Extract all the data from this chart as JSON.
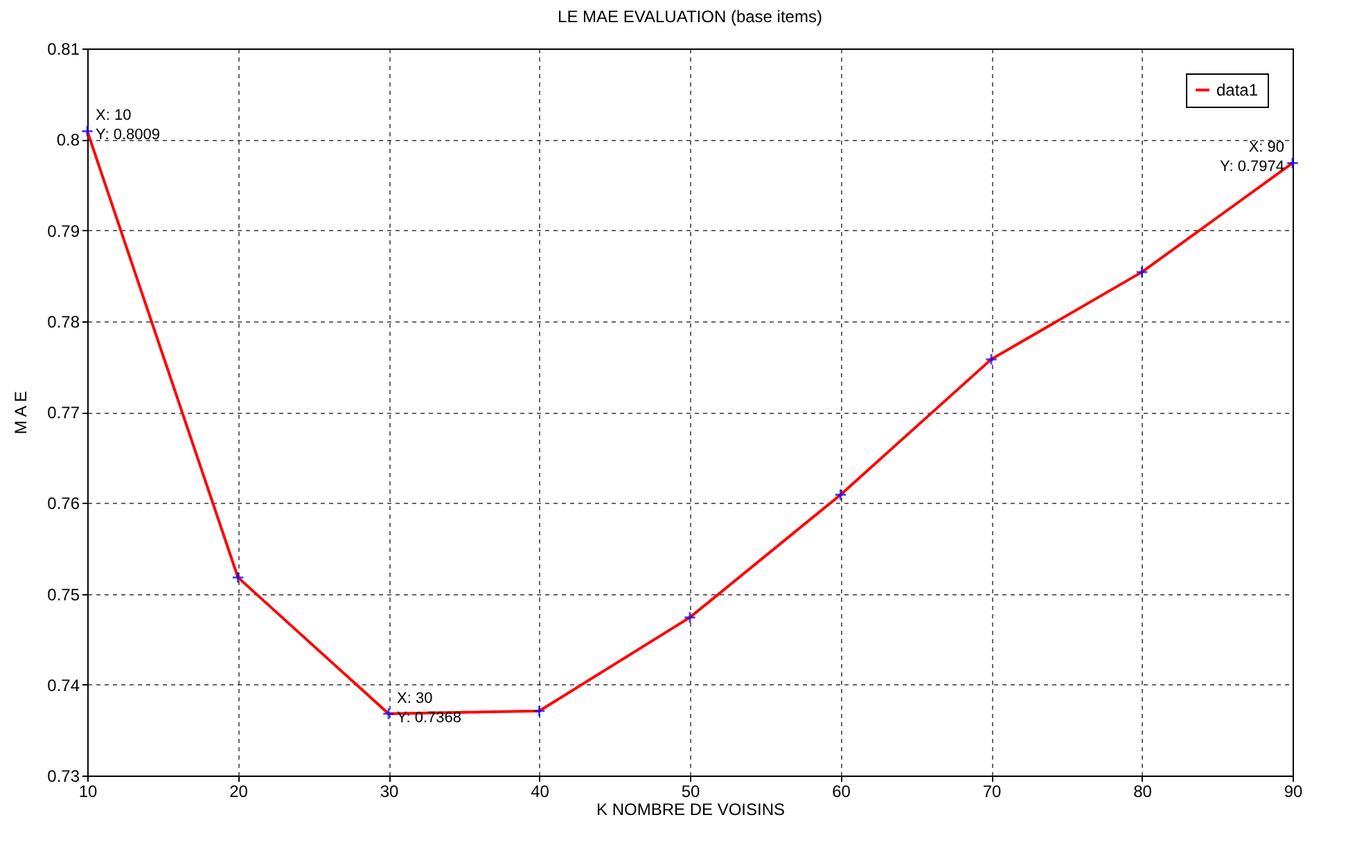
{
  "chart_data": {
    "type": "line",
    "title": "LE MAE EVALUATION (base items)",
    "xlabel": "K NOMBRE DE VOISINS",
    "ylabel": "M A E",
    "x": [
      10,
      20,
      30,
      40,
      50,
      60,
      70,
      80,
      90
    ],
    "series": [
      {
        "name": "data1",
        "color": "#ff0000",
        "values": [
          0.8009,
          0.7518,
          0.7368,
          0.7371,
          0.7474,
          0.7609,
          0.7758,
          0.7854,
          0.7974
        ]
      }
    ],
    "xlim": [
      10,
      90
    ],
    "xticks": [
      10,
      20,
      30,
      40,
      50,
      60,
      70,
      80,
      90
    ],
    "ylim": [
      0.73,
      0.81
    ],
    "yticks": [
      0.73,
      0.74,
      0.75,
      0.76,
      0.77,
      0.78,
      0.79,
      0.8,
      0.81
    ],
    "grid": true,
    "legend": "top right",
    "marker": "cross",
    "line_style": "solid",
    "annotations": [
      {
        "text": "X: 10\nY: 0.8009",
        "x": 10,
        "y": 0.8009
      },
      {
        "text": "X: 30\nY: 0.7368",
        "x": 30,
        "y": 0.7368
      },
      {
        "text": "X: 90\nY: 0.7974",
        "x": 90,
        "y": 0.7974
      }
    ]
  }
}
